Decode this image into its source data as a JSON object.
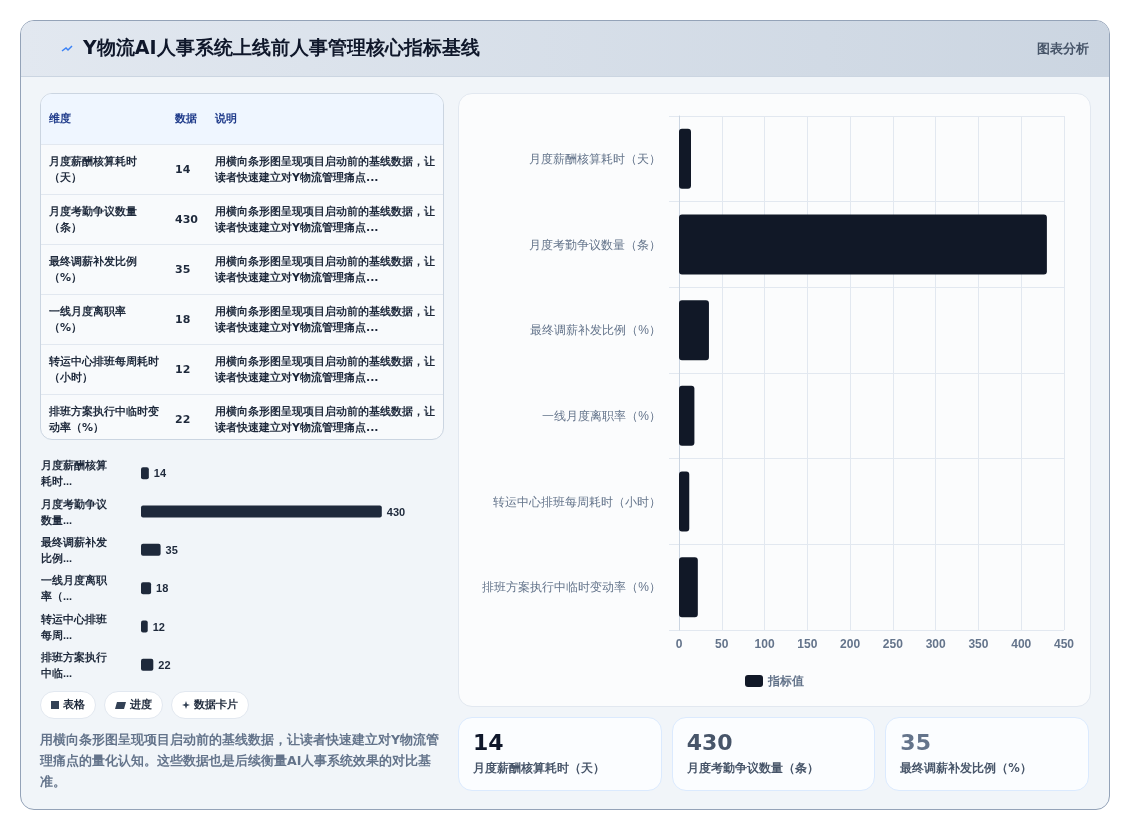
{
  "chart_data": [
    {
      "type": "other",
      "title": "Y物流AI人事系统上线前人事管理核心指标基线",
      "annotations": [
        "图表分析"
      ]
    },
    {
      "type": "other",
      "annotations": [
        "维度",
        "数据",
        "说明",
        "月度薪酬核算耗时（天）",
        "14",
        "用横向条形图呈现项目启动前的基线数据，让读者快速建立对Y物流管理痛点...",
        "月度考勤争议数量（条）",
        "430",
        "用横向条形图呈现项目启动前的基线数据，让读者快速建立对Y物流管理痛点...",
        "最终调薪补发比例（%）",
        "35",
        "用横向条形图呈现项目启动前的基线数据，让读者快速建立对Y物流管理痛点...",
        "一线月度离职率（%）",
        "18",
        "用横向条形图呈现项目启动前的基线数据，让读者快速建立对Y物流管理痛点...",
        "转运中心排班每周耗时（小时）",
        "12",
        "用横向条形图呈现项目启动前的基线数据，让读者快速建立对Y物流管理痛点...",
        "排班方案执行中临时变动率（%）",
        "22",
        "用横向条形图呈现项目启动前的基线数据，让读者快速建立对Y物流管理痛点..."
      ]
    },
    {
      "type": "bar",
      "orientation": "horizontal",
      "categories": [
        "月度薪酬核算耗时...",
        "月度考勤争议数量...",
        "最终调薪补发比例...",
        "一线月度离职率（...",
        "转运中心排班每周...",
        "排班方案执行中临..."
      ],
      "values": [
        14,
        430,
        35,
        18,
        12,
        22
      ],
      "color": "#1e293b",
      "data_labels": true
    },
    {
      "type": "other",
      "annotations": [
        "表格",
        "进度",
        "数据卡片"
      ]
    },
    {
      "type": "other",
      "annotations": [
        "用横向条形图呈现项目启动前的基线数据，让读者快速建立对Y物流管理痛点的量化认知。这些数据也是后续衡量AI人事系统效果的对比基准。"
      ]
    },
    {
      "type": "bar",
      "orientation": "horizontal",
      "categories": [
        "月度薪酬核算耗时（天）",
        "月度考勤争议数量（条）",
        "最终调薪补发比例（%）",
        "一线月度离职率（%）",
        "转运中心排班每周耗时（小时）",
        "排班方案执行中临时变动率（%）"
      ],
      "series": [
        {
          "name": "指标值",
          "color": "#111827",
          "values": [
            14,
            430,
            35,
            18,
            12,
            22
          ]
        }
      ],
      "xlim": [
        0,
        450
      ],
      "xticks": [
        0,
        50,
        100,
        150,
        200,
        250,
        300,
        350,
        400,
        450
      ],
      "grid": true,
      "legend": "bottom"
    },
    {
      "type": "other",
      "annotations": [
        "14",
        "月度薪酬核算耗时（天）",
        "430",
        "月度考勤争议数量（条）",
        "35",
        "最终调薪补发比例（%）"
      ]
    }
  ]
}
